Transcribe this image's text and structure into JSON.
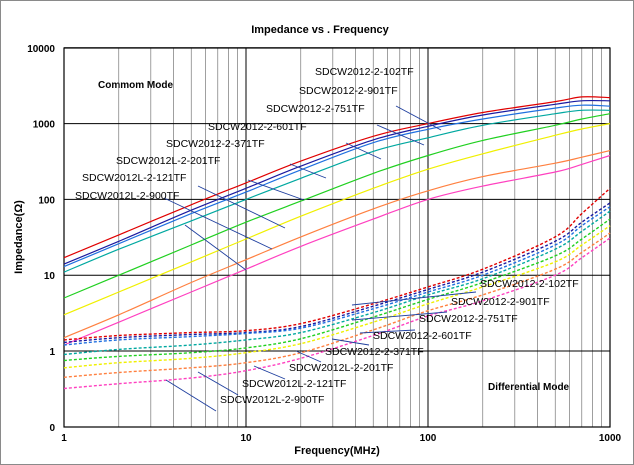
{
  "chart_data": {
    "type": "line",
    "title": "Impedance vs . Frequency",
    "xlabel": "Frequency(MHz)",
    "ylabel": "Impedance(Ω)",
    "x_scale": "log",
    "y_scale": "log",
    "xlim": [
      1,
      1000
    ],
    "ylim": [
      0,
      10000
    ],
    "x_ticks": [
      "1",
      "10",
      "100",
      "1000"
    ],
    "y_ticks": [
      "0",
      "1",
      "10",
      "100",
      "1000",
      "10000"
    ],
    "grid": true,
    "region_labels": [
      "Commom Mode",
      "Differential Mode"
    ],
    "x": [
      1,
      2,
      5,
      10,
      20,
      50,
      100,
      200,
      500,
      700,
      1000
    ],
    "series": [
      {
        "name": "SDCW2012-2-102TF",
        "mode": "common",
        "color": "#e00000",
        "values": [
          17,
          34,
          85,
          165,
          320,
          680,
          1000,
          1400,
          1950,
          2250,
          2200
        ]
      },
      {
        "name": "SDCW2012-2-901TF",
        "mode": "common",
        "color": "#1a1aa0",
        "values": [
          14,
          28,
          72,
          140,
          275,
          610,
          920,
          1300,
          1800,
          2000,
          2000
        ]
      },
      {
        "name": "SDCW2012-2-751TF",
        "mode": "common",
        "color": "#2070e0",
        "values": [
          13,
          26,
          65,
          125,
          245,
          560,
          840,
          1150,
          1600,
          1750,
          1700
        ]
      },
      {
        "name": "SDCW2012-2-601TF",
        "mode": "common",
        "color": "#00a8a0",
        "values": [
          11,
          22,
          52,
          100,
          190,
          430,
          650,
          950,
          1350,
          1500,
          1500
        ]
      },
      {
        "name": "SDCW2012-2-371TF",
        "mode": "common",
        "color": "#20d020",
        "values": [
          5,
          10,
          25,
          50,
          95,
          220,
          380,
          600,
          950,
          1150,
          1350
        ]
      },
      {
        "name": "SDCW2012L-2-201TF",
        "mode": "common",
        "color": "#f0f000",
        "values": [
          3,
          6,
          15,
          30,
          60,
          140,
          250,
          400,
          700,
          850,
          1000
        ]
      },
      {
        "name": "SDCW2012L-2-121TF",
        "mode": "common",
        "color": "#ff8040",
        "values": [
          1.5,
          3,
          8,
          16,
          32,
          75,
          130,
          200,
          300,
          360,
          440
        ]
      },
      {
        "name": "SDCW2012L-2-900TF",
        "mode": "common",
        "color": "#ff40c0",
        "values": [
          1.2,
          2.4,
          6,
          12,
          24,
          55,
          100,
          150,
          230,
          290,
          380
        ]
      },
      {
        "name": "SDCW2012-2-102TF",
        "mode": "differential",
        "color": "#e00000",
        "values": [
          1.4,
          1.6,
          1.75,
          1.85,
          2.3,
          4.2,
          7,
          12,
          32,
          65,
          140
        ]
      },
      {
        "name": "SDCW2012-2-901TF",
        "mode": "differential",
        "color": "#1a1aa0",
        "values": [
          1.3,
          1.5,
          1.65,
          1.75,
          2.1,
          3.9,
          6.5,
          11,
          28,
          50,
          90
        ]
      },
      {
        "name": "SDCW2012-2-751TF",
        "mode": "differential",
        "color": "#2070e0",
        "values": [
          1.2,
          1.4,
          1.55,
          1.7,
          2,
          3.6,
          6,
          10,
          25,
          45,
          80
        ]
      },
      {
        "name": "SDCW2012-2-601TF",
        "mode": "differential",
        "color": "#00a8a0",
        "values": [
          0.9,
          1.05,
          1.2,
          1.4,
          1.75,
          3.2,
          5.5,
          9,
          22,
          38,
          70
        ]
      },
      {
        "name": "SDCW2012-2-371TF",
        "mode": "differential",
        "color": "#20d020",
        "values": [
          0.75,
          0.85,
          0.95,
          1.1,
          1.45,
          2.8,
          4.8,
          8,
          18,
          30,
          55
        ]
      },
      {
        "name": "SDCW2012L-2-201TF",
        "mode": "differential",
        "color": "#f0f000",
        "values": [
          0.6,
          0.7,
          0.8,
          0.95,
          1.25,
          2.4,
          4.2,
          7,
          15,
          25,
          45
        ]
      },
      {
        "name": "SDCW2012L-2-121TF",
        "mode": "differential",
        "color": "#ff8040",
        "values": [
          0.45,
          0.52,
          0.6,
          0.7,
          0.95,
          1.9,
          3.4,
          5.5,
          12,
          20,
          36
        ]
      },
      {
        "name": "SDCW2012L-2-900TF",
        "mode": "differential",
        "color": "#ff40c0",
        "values": [
          0.32,
          0.37,
          0.44,
          0.55,
          0.8,
          1.6,
          2.9,
          4.6,
          10,
          17,
          31
        ]
      }
    ]
  }
}
